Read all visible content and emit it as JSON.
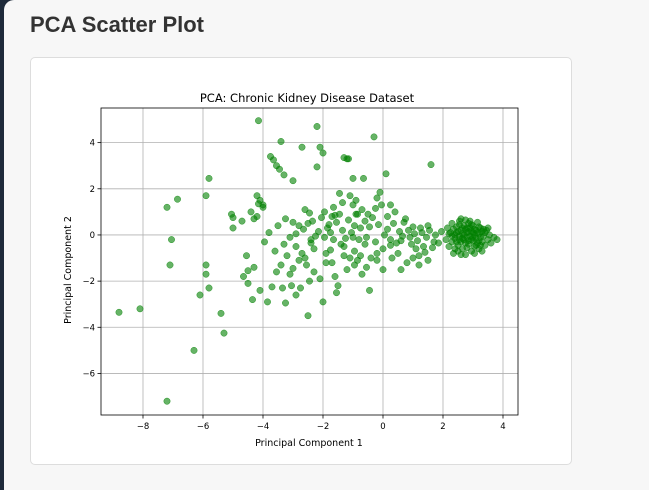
{
  "page": {
    "title": "PCA Scatter Plot"
  },
  "chart_data": {
    "type": "scatter",
    "title": "PCA: Chronic Kidney Disease Dataset",
    "xlabel": "Principal Component 1",
    "ylabel": "Principal Component 2",
    "xlim": [
      -9.4,
      4.5
    ],
    "ylim": [
      -7.8,
      5.5
    ],
    "xticks": [
      -8,
      -6,
      -4,
      -2,
      0,
      2,
      4
    ],
    "yticks": [
      -6,
      -4,
      -2,
      0,
      2,
      4
    ],
    "xtick_labels": [
      "−8",
      "−6",
      "−4",
      "−2",
      "0",
      "2",
      "4"
    ],
    "ytick_labels": [
      "−6",
      "−4",
      "−2",
      "0",
      "2",
      "4"
    ],
    "grid": true,
    "marker_color": "#008000",
    "marker_alpha": 0.6,
    "series": [
      {
        "points": [
          [
            -8.8,
            -3.35
          ],
          [
            -8.1,
            -3.2
          ],
          [
            -7.2,
            1.2
          ],
          [
            -7.05,
            -0.2
          ],
          [
            -7.1,
            -1.3
          ],
          [
            -6.85,
            1.55
          ],
          [
            -7.2,
            -7.2
          ],
          [
            -6.3,
            -5.0
          ],
          [
            -6.1,
            -2.6
          ],
          [
            -5.9,
            -1.3
          ],
          [
            -5.9,
            -1.7
          ],
          [
            -5.8,
            -2.3
          ],
          [
            -5.9,
            1.7
          ],
          [
            -5.8,
            2.45
          ],
          [
            -5.4,
            -3.4
          ],
          [
            -5.3,
            -4.25
          ],
          [
            -5.05,
            0.9
          ],
          [
            -5.0,
            0.75
          ],
          [
            -5.0,
            0.3
          ],
          [
            -4.7,
            0.6
          ],
          [
            -4.65,
            -1.8
          ],
          [
            -4.5,
            -2.1
          ],
          [
            -4.5,
            -1.55
          ],
          [
            -4.4,
            1.0
          ],
          [
            -4.35,
            -2.8
          ],
          [
            -4.3,
            -1.4
          ],
          [
            -4.3,
            0.7
          ],
          [
            -4.2,
            1.7
          ],
          [
            -4.1,
            1.5
          ],
          [
            -4.0,
            1.2
          ],
          [
            -3.95,
            -0.3
          ],
          [
            -3.85,
            -2.9
          ],
          [
            -4.15,
            1.35
          ],
          [
            -4.0,
            1.3
          ],
          [
            -4.2,
            0.8
          ],
          [
            -3.75,
            3.4
          ],
          [
            -3.65,
            3.25
          ],
          [
            -3.55,
            3.0
          ],
          [
            -3.45,
            2.85
          ],
          [
            -3.3,
            2.6
          ],
          [
            -3.25,
            0.7
          ],
          [
            -3.2,
            -0.9
          ],
          [
            -3.1,
            -1.7
          ],
          [
            -3.05,
            -2.2
          ],
          [
            -3.0,
            2.35
          ],
          [
            -2.9,
            -2.6
          ],
          [
            -2.75,
            -2.3
          ],
          [
            -2.7,
            -0.8
          ],
          [
            -2.6,
            1.1
          ],
          [
            -2.55,
            -1.3
          ],
          [
            -2.5,
            -3.5
          ],
          [
            -2.5,
            0.5
          ],
          [
            -2.4,
            -0.2
          ],
          [
            -2.3,
            -1.6
          ],
          [
            -2.2,
            2.95
          ],
          [
            -2.0,
            -2.9
          ],
          [
            -1.95,
            -0.1
          ],
          [
            -1.9,
            -1.2
          ],
          [
            -1.8,
            0.45
          ],
          [
            -1.75,
            -0.65
          ],
          [
            -1.7,
            0.8
          ],
          [
            -1.65,
            1.2
          ],
          [
            -1.6,
            -1.8
          ],
          [
            -1.5,
            -2.2
          ],
          [
            -1.4,
            -0.4
          ],
          [
            -1.35,
            1.4
          ],
          [
            -1.3,
            -0.9
          ],
          [
            -1.2,
            -1.5
          ],
          [
            -1.15,
            3.3
          ],
          [
            -1.05,
            0.1
          ],
          [
            -1.0,
            2.45
          ],
          [
            -0.95,
            -0.7
          ],
          [
            -0.9,
            1.5
          ],
          [
            -0.85,
            -1.1
          ],
          [
            -0.75,
            0.3
          ],
          [
            -0.7,
            -1.7
          ],
          [
            -0.65,
            2.45
          ],
          [
            -0.6,
            -0.4
          ],
          [
            -0.5,
            0.9
          ],
          [
            -0.45,
            -2.4
          ],
          [
            -0.3,
            4.25
          ],
          [
            -0.25,
            1.15
          ],
          [
            -0.2,
            -0.8
          ],
          [
            -0.1,
            1.85
          ],
          [
            0.0,
            -1.5
          ],
          [
            0.1,
            2.65
          ],
          [
            0.15,
            0.25
          ],
          [
            0.25,
            -0.45
          ],
          [
            0.4,
            1.0
          ],
          [
            0.5,
            -0.8
          ],
          [
            0.6,
            -0.25
          ],
          [
            0.7,
            0.55
          ],
          [
            0.8,
            -1.2
          ],
          [
            0.9,
            -0.1
          ],
          [
            1.0,
            0.35
          ],
          [
            1.1,
            -0.6
          ],
          [
            1.2,
            -0.9
          ],
          [
            1.3,
            0.1
          ],
          [
            1.4,
            -0.75
          ],
          [
            1.5,
            0.4
          ],
          [
            1.6,
            3.05
          ],
          [
            1.7,
            -0.3
          ],
          [
            -4.15,
            4.95
          ],
          [
            -3.4,
            4.05
          ],
          [
            -2.7,
            3.8
          ],
          [
            -2.2,
            4.7
          ],
          [
            -2.1,
            3.8
          ],
          [
            -2.0,
            3.55
          ],
          [
            -1.3,
            3.35
          ],
          [
            -1.2,
            3.3
          ],
          [
            -3.0,
            0.55
          ],
          [
            -2.9,
            0.05
          ],
          [
            -2.8,
            0.4
          ],
          [
            -2.65,
            0.25
          ],
          [
            -2.45,
            0.95
          ],
          [
            -2.35,
            0.6
          ],
          [
            -2.25,
            -0.05
          ],
          [
            -2.15,
            0.15
          ],
          [
            -2.05,
            0.75
          ],
          [
            -1.95,
            1.0
          ],
          [
            -1.85,
            0.3
          ],
          [
            -1.75,
            0.1
          ],
          [
            -1.65,
            -0.2
          ],
          [
            -1.55,
            0.55
          ],
          [
            -1.45,
            0.9
          ],
          [
            -1.35,
            0.2
          ],
          [
            -1.25,
            -0.15
          ],
          [
            -1.15,
            0.65
          ],
          [
            -1.1,
            1.7
          ],
          [
            -1.0,
            1.3
          ],
          [
            -0.95,
            0.4
          ],
          [
            -0.85,
            0.9
          ],
          [
            -0.8,
            -0.2
          ],
          [
            -0.7,
            1.1
          ],
          [
            -0.6,
            0.6
          ],
          [
            -0.55,
            -0.1
          ],
          [
            -0.45,
            0.35
          ],
          [
            -0.35,
            0.75
          ],
          [
            -0.25,
            -0.3
          ],
          [
            -0.15,
            0.45
          ],
          [
            -0.05,
            1.3
          ],
          [
            0.05,
            0.0
          ],
          [
            0.15,
            0.8
          ],
          [
            0.25,
            -0.2
          ],
          [
            0.35,
            0.5
          ],
          [
            0.45,
            -0.35
          ],
          [
            0.55,
            0.15
          ],
          [
            0.65,
            -0.05
          ],
          [
            0.75,
            0.7
          ],
          [
            0.85,
            0.2
          ],
          [
            0.95,
            -0.4
          ],
          [
            1.05,
            0.05
          ],
          [
            1.15,
            -0.25
          ],
          [
            1.25,
            0.3
          ],
          [
            1.35,
            -0.5
          ],
          [
            1.45,
            -0.1
          ],
          [
            1.55,
            0.2
          ],
          [
            1.65,
            -0.55
          ],
          [
            1.75,
            0.0
          ],
          [
            1.85,
            -0.35
          ],
          [
            1.95,
            0.15
          ],
          [
            -2.9,
            -0.5
          ],
          [
            -3.1,
            -0.1
          ],
          [
            -3.3,
            -0.4
          ],
          [
            -3.5,
            0.4
          ],
          [
            -3.6,
            -0.7
          ],
          [
            -3.8,
            0.1
          ],
          [
            -3.4,
            -1.3
          ],
          [
            -2.6,
            -1.0
          ],
          [
            -2.3,
            -0.6
          ],
          [
            -2.1,
            -1.9
          ],
          [
            -1.9,
            -0.8
          ],
          [
            -1.7,
            -1.2
          ],
          [
            -1.55,
            -2.5
          ],
          [
            -1.3,
            -0.5
          ],
          [
            -1.1,
            -1.0
          ],
          [
            -0.95,
            -1.3
          ],
          [
            -0.75,
            -0.9
          ],
          [
            -0.55,
            -1.4
          ],
          [
            -0.4,
            -1.0
          ],
          [
            -0.2,
            -1.1
          ],
          [
            0.0,
            -0.6
          ],
          [
            0.3,
            -1.0
          ],
          [
            0.6,
            -1.5
          ],
          [
            1.0,
            -1.0
          ],
          [
            1.2,
            -1.3
          ],
          [
            1.5,
            -1.1
          ],
          [
            -4.55,
            -0.9
          ],
          [
            -4.1,
            -2.4
          ],
          [
            -3.7,
            -2.25
          ],
          [
            -3.55,
            -1.6
          ],
          [
            -3.35,
            -2.3
          ],
          [
            -3.25,
            -2.95
          ],
          [
            -3.0,
            -1.45
          ],
          [
            -2.8,
            -1.1
          ],
          [
            -2.45,
            -2.0
          ],
          [
            -1.45,
            1.8
          ],
          [
            -0.9,
            0.9
          ],
          [
            -0.2,
            1.6
          ],
          [
            0.25,
            1.3
          ],
          [
            -1.0,
            -0.1
          ],
          [
            -1.6,
            0.85
          ],
          [
            -2.4,
            -0.35
          ],
          [
            2.1,
            -0.2
          ],
          [
            2.15,
            0.3
          ],
          [
            2.2,
            -0.5
          ],
          [
            2.25,
            0.1
          ],
          [
            2.3,
            -0.3
          ],
          [
            2.3,
            0.5
          ],
          [
            2.35,
            -0.8
          ],
          [
            2.4,
            0.0
          ],
          [
            2.4,
            -0.15
          ],
          [
            2.45,
            0.35
          ],
          [
            2.5,
            -0.45
          ],
          [
            2.5,
            0.15
          ],
          [
            2.55,
            -0.05
          ],
          [
            2.55,
            0.6
          ],
          [
            2.6,
            -0.3
          ],
          [
            2.6,
            0.2
          ],
          [
            2.65,
            -0.6
          ],
          [
            2.65,
            0.05
          ],
          [
            2.7,
            0.4
          ],
          [
            2.7,
            -0.2
          ],
          [
            2.75,
            -0.85
          ],
          [
            2.75,
            0.25
          ],
          [
            2.8,
            -0.1
          ],
          [
            2.8,
            0.1
          ],
          [
            2.85,
            -0.4
          ],
          [
            2.85,
            0.5
          ],
          [
            2.9,
            -0.05
          ],
          [
            2.9,
            0.3
          ],
          [
            2.95,
            -0.7
          ],
          [
            2.95,
            0.15
          ],
          [
            3.0,
            -0.25
          ],
          [
            3.0,
            0.4
          ],
          [
            3.05,
            0.0
          ],
          [
            3.05,
            -0.5
          ],
          [
            3.1,
            0.2
          ],
          [
            3.1,
            -0.15
          ],
          [
            3.15,
            0.55
          ],
          [
            3.15,
            -0.35
          ],
          [
            3.2,
            0.05
          ],
          [
            3.2,
            -0.6
          ],
          [
            3.25,
            0.3
          ],
          [
            3.25,
            -0.1
          ],
          [
            3.3,
            -0.3
          ],
          [
            3.3,
            0.15
          ],
          [
            3.35,
            -0.05
          ],
          [
            3.4,
            -0.45
          ],
          [
            3.45,
            0.2
          ],
          [
            3.5,
            -0.2
          ],
          [
            3.55,
            0.0
          ],
          [
            3.6,
            -0.35
          ],
          [
            3.7,
            -0.1
          ],
          [
            3.8,
            -0.2
          ],
          [
            2.35,
            0.25
          ],
          [
            2.45,
            -0.3
          ],
          [
            2.55,
            0.45
          ],
          [
            2.65,
            -0.15
          ],
          [
            2.75,
            0.65
          ],
          [
            2.85,
            -0.25
          ],
          [
            2.95,
            0.45
          ],
          [
            3.05,
            -0.8
          ],
          [
            2.2,
            0.05
          ],
          [
            2.3,
            -0.05
          ],
          [
            2.5,
            -0.7
          ],
          [
            2.6,
            0.7
          ],
          [
            2.7,
            0.0
          ],
          [
            2.8,
            -0.55
          ],
          [
            2.9,
            0.6
          ],
          [
            3.0,
            0.1
          ],
          [
            3.1,
            -0.45
          ],
          [
            3.2,
            0.35
          ],
          [
            3.3,
            -0.7
          ],
          [
            3.4,
            0.1
          ],
          [
            3.5,
            0.3
          ],
          [
            2.4,
            -0.6
          ],
          [
            2.6,
            -0.85
          ],
          [
            2.8,
            0.3
          ],
          [
            3.0,
            -0.1
          ],
          [
            3.2,
            -0.25
          ],
          [
            2.45,
            0.1
          ],
          [
            2.65,
            0.3
          ],
          [
            2.85,
            0.15
          ],
          [
            3.05,
            0.25
          ],
          [
            3.25,
            -0.45
          ],
          [
            2.55,
            -0.2
          ],
          [
            2.75,
            -0.35
          ],
          [
            2.95,
            -0.2
          ],
          [
            3.15,
            0.1
          ],
          [
            3.35,
            0.25
          ]
        ]
      }
    ]
  }
}
